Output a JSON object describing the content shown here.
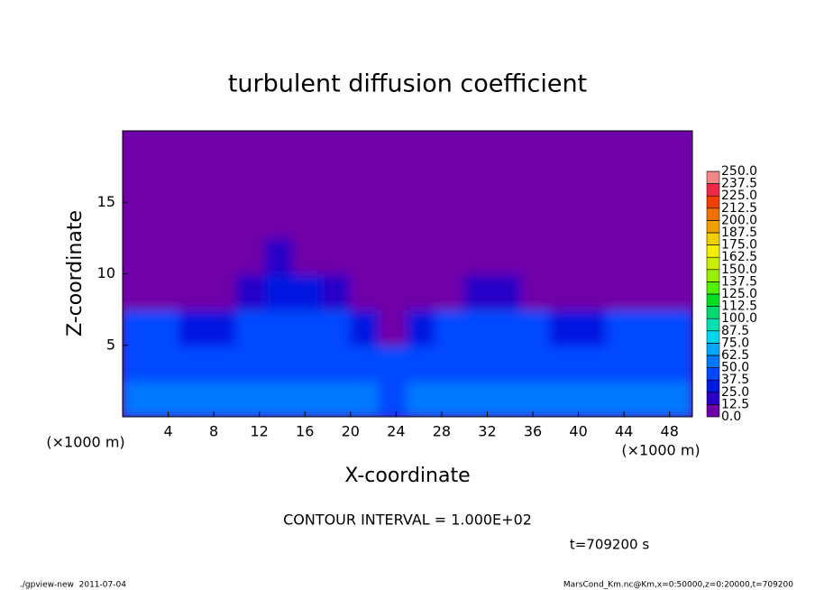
{
  "chart_data": {
    "type": "heatmap",
    "title": "turbulent diffusion coefficient",
    "x_label": "X-coordinate",
    "y_label": "Z-coordinate",
    "x_unit": "(×1000 m)",
    "y_unit": "(×1000 m)",
    "contour_note": "CONTOUR INTERVAL = 1.000E+02",
    "time_label": "t=709200 s",
    "footer_left": "./gpview-new  2011-07-04",
    "footer_right": "MarsCond_Km.nc@Km,x=0:50000,z=0:20000,t=709200",
    "xlim": [
      0,
      50
    ],
    "ylim": [
      0,
      20
    ],
    "xticks": [
      4,
      8,
      12,
      16,
      20,
      24,
      28,
      32,
      36,
      40,
      44,
      48
    ],
    "yticks": [
      5,
      10,
      15
    ],
    "x": [
      1.25,
      3.75,
      6.25,
      8.75,
      11.25,
      13.75,
      16.25,
      18.75,
      21.25,
      23.75,
      26.25,
      28.75,
      31.25,
      33.75,
      36.25,
      38.75,
      41.25,
      43.75,
      46.25,
      48.75
    ],
    "y": [
      1.25,
      3.75,
      6.25,
      8.75,
      11.25,
      13.75,
      16.25,
      18.75
    ],
    "cell_width": 2.5,
    "cell_height": 2.5,
    "values": [
      [
        55,
        55,
        55,
        55,
        55,
        55,
        55,
        55,
        55,
        45,
        55,
        55,
        55,
        55,
        55,
        55,
        55,
        55,
        55,
        55
      ],
      [
        45,
        45,
        45,
        45,
        45,
        45,
        45,
        45,
        45,
        40,
        45,
        45,
        45,
        45,
        45,
        45,
        45,
        45,
        45,
        45
      ],
      [
        40,
        40,
        25,
        25,
        40,
        40,
        40,
        40,
        25,
        3,
        25,
        40,
        40,
        40,
        40,
        25,
        25,
        40,
        40,
        40
      ],
      [
        3,
        3,
        3,
        3,
        20,
        30,
        30,
        20,
        3,
        3,
        3,
        3,
        20,
        20,
        3,
        3,
        3,
        3,
        3,
        3
      ],
      [
        3,
        3,
        3,
        3,
        3,
        15,
        3,
        3,
        3,
        3,
        3,
        3,
        3,
        3,
        3,
        3,
        3,
        3,
        3,
        3
      ],
      [
        0,
        0,
        0,
        0,
        0,
        1,
        0,
        0,
        0,
        1,
        0,
        0,
        0,
        0,
        0,
        0,
        0,
        0,
        0,
        0
      ],
      [
        0,
        0,
        0,
        0,
        0,
        0,
        0,
        0,
        0,
        0,
        0,
        0,
        0,
        0,
        0,
        0,
        0,
        0,
        0,
        0
      ],
      [
        0,
        0,
        0,
        0,
        0,
        0,
        0,
        0,
        0,
        0,
        0,
        0,
        0,
        0,
        0,
        0,
        0,
        0,
        0,
        0
      ]
    ],
    "levels": [
      {
        "value": 0,
        "label": "0.0"
      },
      {
        "value": 12.5,
        "label": "12.5"
      },
      {
        "value": 25,
        "label": "25.0"
      },
      {
        "value": 37.5,
        "label": "37.5"
      },
      {
        "value": 50,
        "label": "50.0"
      },
      {
        "value": 62.5,
        "label": "62.5"
      },
      {
        "value": 75,
        "label": "75.0"
      },
      {
        "value": 87.5,
        "label": "87.5"
      },
      {
        "value": 100,
        "label": "100.0"
      },
      {
        "value": 112.5,
        "label": "112.5"
      },
      {
        "value": 125,
        "label": "125.0"
      },
      {
        "value": 137.5,
        "label": "137.5"
      },
      {
        "value": 150,
        "label": "150.0"
      },
      {
        "value": 162.5,
        "label": "162.5"
      },
      {
        "value": 175,
        "label": "175.0"
      },
      {
        "value": 187.5,
        "label": "187.5"
      },
      {
        "value": 200,
        "label": "200.0"
      },
      {
        "value": 212.5,
        "label": "212.5"
      },
      {
        "value": 225,
        "label": "225.0"
      },
      {
        "value": 237.5,
        "label": "237.5"
      },
      {
        "value": 250,
        "label": "250.0"
      }
    ],
    "colors": [
      "#7000a8",
      "#2800c8",
      "#0018e0",
      "#0048ff",
      "#0078ff",
      "#00a8ff",
      "#00d8f0",
      "#00e0b0",
      "#00d870",
      "#00e020",
      "#50f000",
      "#98f000",
      "#c8f000",
      "#f0f000",
      "#f0d000",
      "#f0a000",
      "#f07000",
      "#f04000",
      "#f02848",
      "#f08888"
    ]
  }
}
